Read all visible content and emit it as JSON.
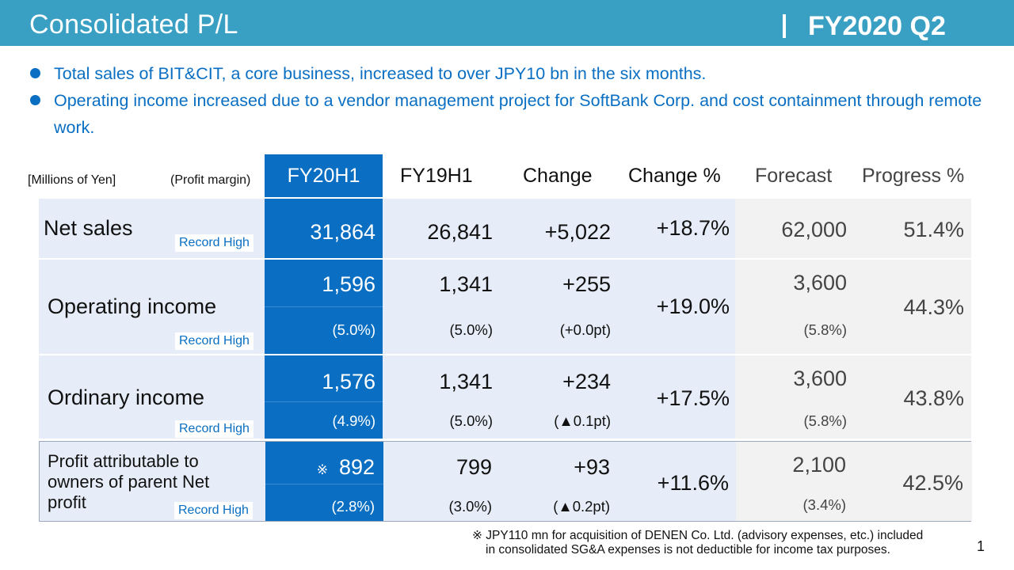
{
  "header": {
    "title": "Consolidated P/L",
    "separator": "|",
    "period": "FY2020 Q2",
    "colors": {
      "banner": "#3aa0c3",
      "accent_blue": "#0a6fc2",
      "row_tint": "#e6edf8",
      "grey_tint": "#f2f2f2"
    }
  },
  "bullets": [
    "Total sales of BIT&CIT, a core business, increased to over JPY10 bn in the six months.",
    "Operating income increased due to a vendor management project for SoftBank Corp. and cost containment through remote work."
  ],
  "table": {
    "units_label": "[Millions of Yen]",
    "margin_label": "(Profit margin)",
    "columns": [
      "FY20H1",
      "FY19H1",
      "Change",
      "Change %",
      "Forecast",
      "Progress %"
    ],
    "record_label": "Record High",
    "rows": [
      {
        "label": "Net sales",
        "current": "31,864",
        "previous": "26,841",
        "change": "+5,022",
        "change_pct": "+18.7%",
        "forecast": "62,000",
        "progress": "51.4%"
      },
      {
        "label": "Operating income",
        "current": "1,596",
        "current_margin": "(5.0%)",
        "previous": "1,341",
        "previous_margin": "(5.0%)",
        "change": "+255",
        "change_margin": "(+0.0pt)",
        "change_pct": "+19.0%",
        "forecast": "3,600",
        "forecast_margin": "(5.8%)",
        "progress": "44.3%"
      },
      {
        "label": "Ordinary income",
        "current": "1,576",
        "current_margin": "(4.9%)",
        "previous": "1,341",
        "previous_margin": "(5.0%)",
        "change": "+234",
        "change_margin": "(▲0.1pt)",
        "change_pct": "+17.5%",
        "forecast": "3,600",
        "forecast_margin": "(5.8%)",
        "progress": "43.8%"
      },
      {
        "label_lines": [
          "Profit attributable to",
          "owners of parent Net",
          "profit"
        ],
        "note_mark": "※",
        "current": "892",
        "current_margin": "(2.8%)",
        "previous": "799",
        "previous_margin": "(3.0%)",
        "change": "+93",
        "change_margin": "(▲0.2pt)",
        "change_pct": "+11.6%",
        "forecast": "2,100",
        "forecast_margin": "(3.4%)",
        "progress": "42.5%"
      }
    ]
  },
  "footnote": {
    "line1": "※ JPY110 mn for acquisition of DENEN Co. Ltd. (advisory expenses, etc.) included",
    "line2": "in consolidated SG&A expenses is not deductible for income tax purposes."
  },
  "page_number": "1"
}
